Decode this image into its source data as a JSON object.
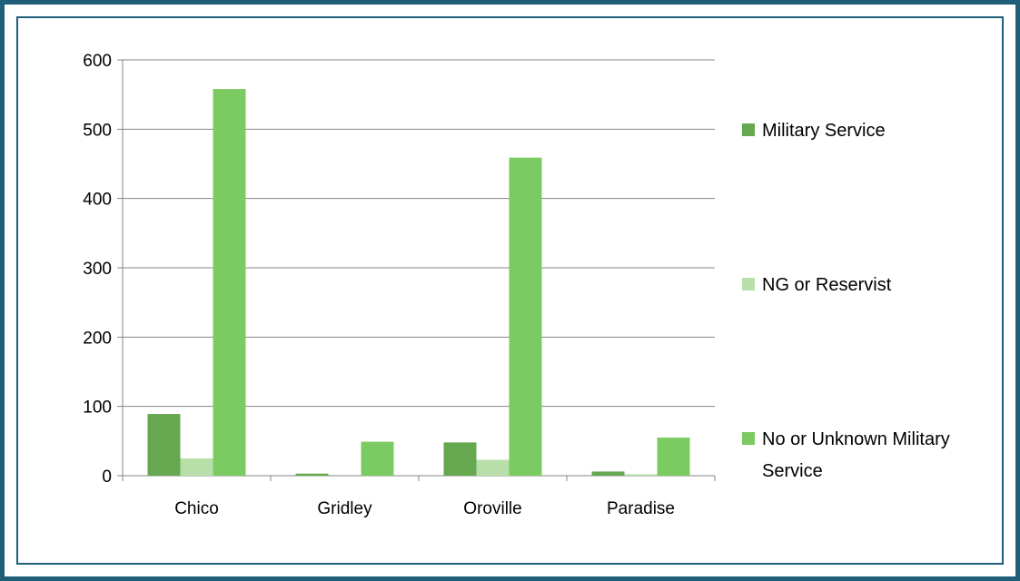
{
  "chart_data": {
    "type": "bar",
    "categories": [
      "Chico",
      "Gridley",
      "Oroville",
      "Paradise"
    ],
    "series": [
      {
        "name": "Military Service",
        "color": "#66a84f",
        "values": [
          89,
          3,
          48,
          6
        ]
      },
      {
        "name": "NG or Reservist",
        "color": "#b8dfa9",
        "values": [
          25,
          0,
          23,
          2
        ]
      },
      {
        "name": "No or Unknown Military Service",
        "color": "#7ccb62",
        "values": [
          558,
          49,
          459,
          55
        ]
      }
    ],
    "yticks": [
      "0",
      "100",
      "200",
      "300",
      "400",
      "500",
      "600"
    ],
    "ylim": [
      0,
      600
    ],
    "grid": true,
    "legend_position": "right"
  }
}
